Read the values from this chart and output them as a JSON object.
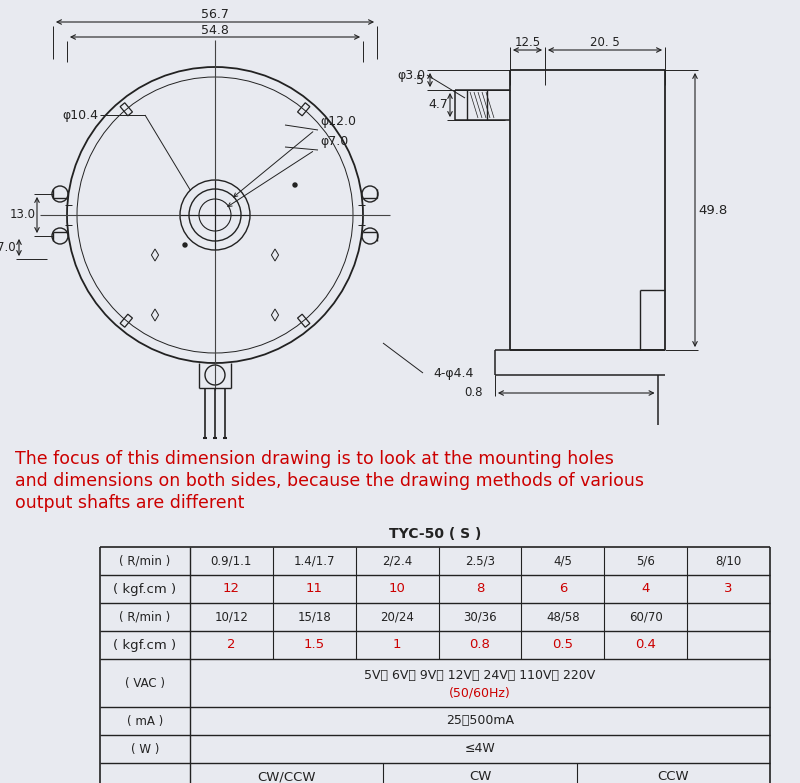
{
  "bg_color": "#e8eaf0",
  "text_color_red": "#cc0000",
  "text_color_black": "#111111",
  "line_color": "#222222",
  "caption_line1": "The focus of this dimension drawing is to look at the mounting holes",
  "caption_line2": "and dimensions on both sides, because the drawing methods of various",
  "caption_line3": "output shafts are different",
  "table_title": "TYC-50 ( S )",
  "table_col_header": [
    "( R/min )",
    "0.9/1.1",
    "1.4/1.7",
    "2/2.4",
    "2.5/3",
    "4/5",
    "5/6",
    "8/10"
  ],
  "table_row2": [
    "( kgf.cm )",
    "12",
    "11",
    "10",
    "8",
    "6",
    "4",
    "3"
  ],
  "table_row3": [
    "( R/min )",
    "10/12",
    "15/18",
    "20/24",
    "30/36",
    "48/58",
    "60/70",
    ""
  ],
  "table_row4": [
    "( kgf.cm )",
    "2",
    "1.5",
    "1",
    "0.8",
    "0.5",
    "0.4",
    ""
  ],
  "table_row5_label": "( VAC )",
  "table_row5_val1": "5V， 6V， 9V， 12V， 24V， 110V， 220V",
  "table_row5_val2": "(50/60Hz)",
  "table_row6_label": "( mA )",
  "table_row6_val": "25～500mA",
  "table_row7_label": "( W )",
  "table_row7_val": "≤4W",
  "table_row8_val1": "CW/CCW",
  "table_row8_val2": "CW",
  "table_row8_val3": "CCW",
  "dim_56_7": "56.7",
  "dim_54_8": "54.8",
  "dim_phi10_4": "φ10.4",
  "dim_phi12": "φ12.0",
  "dim_phi7": "φ7.0",
  "dim_13": "13.0",
  "dim_7": "7.0",
  "dim_4phi4_4": "4-φ4.4",
  "dim_12_5": "12.5",
  "dim_20_5": "20. 5",
  "dim_phi3": "φ3.0",
  "dim_5": "5",
  "dim_4_7": "4.7",
  "dim_49_8": "49.8",
  "dim_0_8": "0.8"
}
